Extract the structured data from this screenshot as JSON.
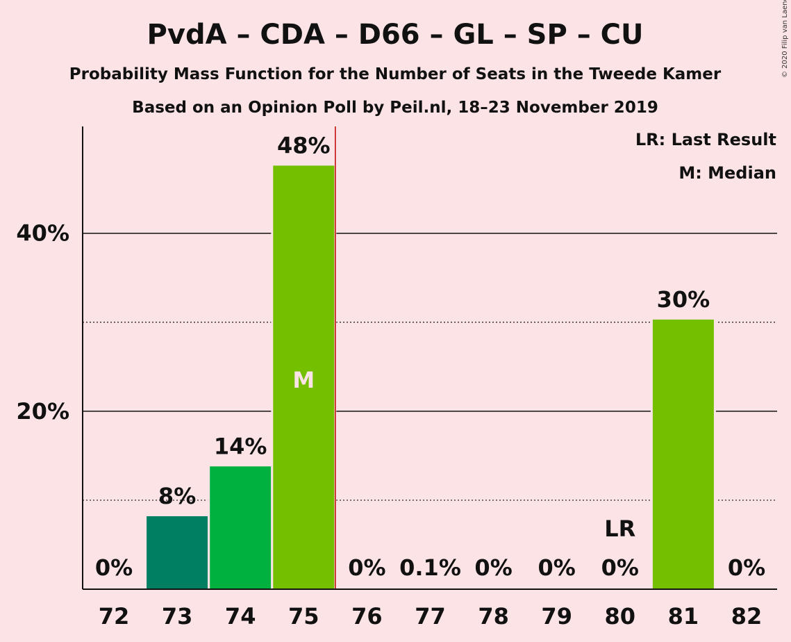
{
  "chart_data": {
    "type": "bar",
    "title": "PvdA – CDA – D66 – GL – SP – CU",
    "subtitle": "Probability Mass Function for the Number of Seats in the Tweede Kamer",
    "subtitle2": "Based on an Opinion Poll by Peil.nl, 18–23 November 2019",
    "copyright": "© 2020 Filip van Laenen",
    "categories": [
      "72",
      "73",
      "74",
      "75",
      "76",
      "77",
      "78",
      "79",
      "80",
      "81",
      "82"
    ],
    "values": [
      0,
      8.2,
      13.8,
      47.6,
      0,
      0.1,
      0,
      0,
      0,
      30.3,
      0
    ],
    "value_labels": [
      "0%",
      "8%",
      "14%",
      "48%",
      "0%",
      "0.1%",
      "0%",
      "0%",
      "0%",
      "30%",
      "0%"
    ],
    "colors": [
      "#1B7A55",
      "#007F62",
      "#00B140",
      "#73BF00",
      "#1B7A55",
      "#1B7A55",
      "#1B7A55",
      "#1B7A55",
      "#1B7A55",
      "#73BF00",
      "#1B7A55"
    ],
    "ylim": [
      0,
      52
    ],
    "yticks": [
      20,
      40
    ],
    "ytick_labels": [
      "20%",
      "40%"
    ],
    "dotted_gridlines": [
      10,
      30
    ],
    "median_index": 3,
    "median_label": "M",
    "last_result_index": 8,
    "last_result_label": "LR",
    "majority_line_after_index": 3,
    "majority_line_color": "#C00000",
    "legend": [
      "LR: Last Result",
      "M: Median"
    ],
    "legend_position": "top-right"
  }
}
